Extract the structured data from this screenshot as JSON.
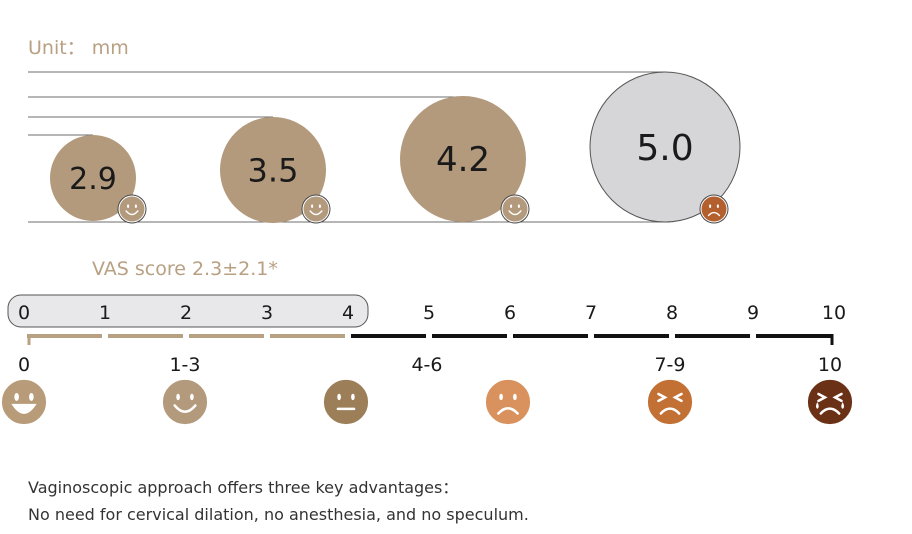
{
  "unit_label": "Unit： mm",
  "circles": [
    {
      "value": "2.9",
      "fill": "#b39a7c",
      "face": "smile",
      "face_fill": "#b39a7c"
    },
    {
      "value": "3.5",
      "fill": "#b39a7c",
      "face": "smile",
      "face_fill": "#b39a7c"
    },
    {
      "value": "4.2",
      "fill": "#b39a7c",
      "face": "smile",
      "face_fill": "#b39a7c"
    },
    {
      "value": "5.0",
      "fill": "#d6d6d8",
      "face": "cry",
      "face_fill": "#b4602e"
    }
  ],
  "vas_title": "VAS score 2.3±2.1*",
  "scale": {
    "ticks": [
      "0",
      "1",
      "2",
      "3",
      "4",
      "5",
      "6",
      "7",
      "8",
      "9",
      "10"
    ],
    "highlight_range": [
      0,
      4
    ]
  },
  "pain_groups": [
    {
      "label": "0",
      "face": "big-smile",
      "color": "#b89c7a"
    },
    {
      "label": "1-3",
      "face": "smile",
      "color": "#b39a7c"
    },
    {
      "label": "",
      "face": "neutral",
      "color": "#9c7f58"
    },
    {
      "label": "4-6",
      "face": "frown",
      "color": "#d9925e"
    },
    {
      "label": "7-9",
      "face": "squint-frown",
      "color": "#c27034"
    },
    {
      "label": "10",
      "face": "cry",
      "color": "#6a3116"
    }
  ],
  "colors": {
    "accent": "#b8a083",
    "line_light": "#b8a083",
    "line_dark": "#111111"
  },
  "footnote": {
    "line1": "Vaginoscopic approach offers three key advantages：",
    "line2": "No need for cervical dilation, no anesthesia, and no speculum."
  }
}
